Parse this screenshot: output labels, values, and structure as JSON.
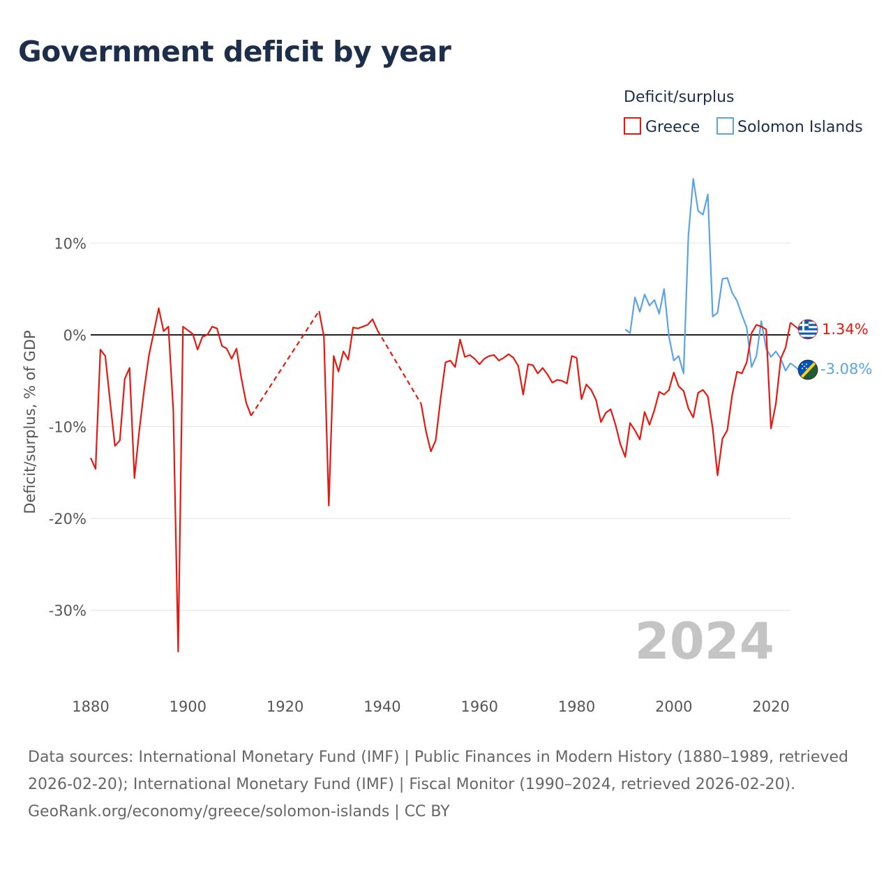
{
  "title": "Government deficit by year",
  "footer": {
    "sources": "Data sources: International Monetary Fund (IMF) | Public Finances in Modern History (1880–1989, retrieved 2026-02-20); International Monetary Fund (IMF) | Fiscal Monitor (1990–2024, retrieved 2026-02-20).",
    "credit": "GeoRank.org/economy/greece/solomon-islands | CC BY"
  },
  "chart_data": {
    "type": "line",
    "title": "Government deficit by year",
    "xlabel": "",
    "ylabel": "Deficit/surplus, % of GDP",
    "xlim": [
      1880,
      2024
    ],
    "ylim": [
      -38,
      19
    ],
    "xticks": [
      1880,
      1900,
      1920,
      1940,
      1960,
      1980,
      2000,
      2020
    ],
    "yticks": [
      10,
      0,
      -10,
      -20,
      -30
    ],
    "ytick_labels": [
      "10%",
      "0%",
      "-10%",
      "-20%",
      "-30%"
    ],
    "grid": true,
    "legend": {
      "title": "Deficit/surplus",
      "position": "top-right"
    },
    "current_year": "2024",
    "series": [
      {
        "name": "Greece",
        "color": "#e8170f",
        "end_label": "1.34%",
        "flag": "greece-flag-icon",
        "x": [
          1880,
          1881,
          1882,
          1883,
          1884,
          1885,
          1886,
          1887,
          1888,
          1889,
          1890,
          1891,
          1892,
          1893,
          1894,
          1895,
          1896,
          1897,
          1898,
          1899,
          1900,
          1901,
          1902,
          1903,
          1904,
          1905,
          1906,
          1907,
          1908,
          1909,
          1910,
          1911,
          1912,
          1913,
          1927,
          1928,
          1929,
          1930,
          1931,
          1932,
          1933,
          1934,
          1935,
          1936,
          1937,
          1938,
          1939,
          1948,
          1949,
          1950,
          1951,
          1952,
          1953,
          1954,
          1955,
          1956,
          1957,
          1958,
          1959,
          1960,
          1961,
          1962,
          1963,
          1964,
          1965,
          1966,
          1967,
          1968,
          1969,
          1970,
          1971,
          1972,
          1973,
          1974,
          1975,
          1976,
          1977,
          1978,
          1979,
          1980,
          1981,
          1982,
          1983,
          1984,
          1985,
          1986,
          1987,
          1988,
          1989,
          1990,
          1991,
          1992,
          1993,
          1994,
          1995,
          1996,
          1997,
          1998,
          1999,
          2000,
          2001,
          2002,
          2003,
          2004,
          2005,
          2006,
          2007,
          2008,
          2009,
          2010,
          2011,
          2012,
          2013,
          2014,
          2015,
          2016,
          2017,
          2018,
          2019,
          2020,
          2021,
          2022,
          2023,
          2024
        ],
        "y": [
          -13.4,
          -14.6,
          -1.6,
          -2.3,
          -7.3,
          -12.1,
          -11.5,
          -4.8,
          -3.6,
          -15.6,
          -10.4,
          -6.0,
          -2.2,
          0.3,
          2.9,
          0.4,
          0.9,
          -8.2,
          -34.5,
          0.9,
          0.5,
          0.1,
          -1.6,
          -0.2,
          0.0,
          0.9,
          0.7,
          -1.2,
          -1.5,
          -2.6,
          -1.5,
          -4.7,
          -7.4,
          -8.8,
          2.6,
          -0.2,
          -18.6,
          -2.3,
          -4.0,
          -1.8,
          -2.7,
          0.8,
          0.7,
          0.9,
          1.1,
          1.7,
          0.5,
          -7.5,
          -10.5,
          -12.7,
          -11.5,
          -7.0,
          -3.0,
          -2.8,
          -3.5,
          -0.5,
          -2.4,
          -2.2,
          -2.6,
          -3.2,
          -2.6,
          -2.3,
          -2.2,
          -2.8,
          -2.5,
          -2.1,
          -2.5,
          -3.4,
          -6.5,
          -3.2,
          -3.3,
          -4.2,
          -3.6,
          -4.3,
          -5.2,
          -4.9,
          -5.0,
          -5.3,
          -2.3,
          -2.5,
          -7.0,
          -5.4,
          -6.0,
          -7.1,
          -9.5,
          -8.5,
          -8.1,
          -9.8,
          -11.9,
          -13.3,
          -9.6,
          -10.4,
          -11.4,
          -8.4,
          -9.8,
          -8.2,
          -6.2,
          -6.5,
          -6.0,
          -4.1,
          -5.6,
          -6.1,
          -8.0,
          -9.0,
          -6.3,
          -6.0,
          -6.7,
          -10.2,
          -15.3,
          -11.3,
          -10.4,
          -6.6,
          -4.0,
          -4.2,
          -3.0,
          0.2,
          1.1,
          0.9,
          0.6,
          -10.2,
          -7.5,
          -2.6,
          -1.4,
          1.34
        ],
        "segments": [
          {
            "from": 1880,
            "to": 1913,
            "style": "solid"
          },
          {
            "from": 1913,
            "to": 1927,
            "style": "dashed"
          },
          {
            "from": 1927,
            "to": 1939,
            "style": "solid"
          },
          {
            "from": 1939,
            "to": 1948,
            "style": "dashed"
          },
          {
            "from": 1948,
            "to": 2024,
            "style": "solid"
          }
        ]
      },
      {
        "name": "Solomon Islands",
        "color": "#5ba3e6",
        "end_label": "-3.08%",
        "flag": "solomon-islands-flag-icon",
        "x": [
          1990,
          1991,
          1992,
          1993,
          1994,
          1995,
          1996,
          1997,
          1998,
          1999,
          2000,
          2001,
          2002,
          2003,
          2004,
          2005,
          2006,
          2007,
          2008,
          2009,
          2010,
          2011,
          2012,
          2013,
          2014,
          2015,
          2016,
          2017,
          2018,
          2019,
          2020,
          2021,
          2022,
          2023,
          2024
        ],
        "y": [
          0.6,
          0.2,
          4.1,
          2.5,
          4.4,
          3.2,
          3.8,
          2.3,
          5.0,
          -0.2,
          -2.8,
          -2.3,
          -4.2,
          10.8,
          17.0,
          13.5,
          13.1,
          15.3,
          2.0,
          2.4,
          6.1,
          6.2,
          4.6,
          3.7,
          2.2,
          0.8,
          -3.5,
          -2.3,
          1.5,
          -1.5,
          -2.4,
          -1.8,
          -2.6,
          -3.9,
          -3.08
        ]
      }
    ]
  }
}
